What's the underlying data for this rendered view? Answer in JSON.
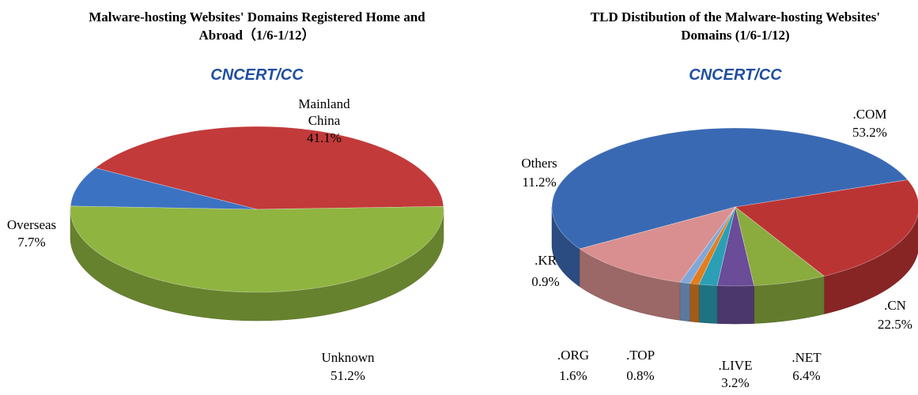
{
  "chart_data": [
    {
      "type": "pie3d",
      "title": "Malware-hosting Websites' Domains Registered Home and Abroad（1/6-1/12）",
      "logo": "CNCERT/CC",
      "categories": [
        "Mainland China",
        "Unknown",
        "Overseas"
      ],
      "values": [
        41.1,
        51.2,
        7.7
      ],
      "value_labels": [
        "41.1%",
        "51.2%",
        "7.7%"
      ],
      "colors": [
        "#c23a3a",
        "#8fb440",
        "#3c72c2"
      ]
    },
    {
      "type": "pie3d",
      "title": "TLD Distibution of the Malware-hosting Websites' Domains (1/6-1/12)",
      "logo": "CNCERT/CC",
      "categories": [
        ".COM",
        ".CN",
        ".NET",
        ".LIVE",
        ".ORG",
        ".TOP",
        ".KR",
        "Others"
      ],
      "values": [
        53.2,
        22.5,
        6.4,
        3.2,
        1.6,
        0.8,
        0.9,
        11.2
      ],
      "value_labels": [
        "53.2%",
        "22.5%",
        "6.4%",
        "3.2%",
        "1.6%",
        "0.8%",
        "0.9%",
        "11.2%"
      ],
      "colors": [
        "#3a69b3",
        "#bb3434",
        "#8aab3e",
        "#6a4c98",
        "#2a9fb5",
        "#e27e1e",
        "#80a8da",
        "#d98f8f"
      ]
    }
  ]
}
